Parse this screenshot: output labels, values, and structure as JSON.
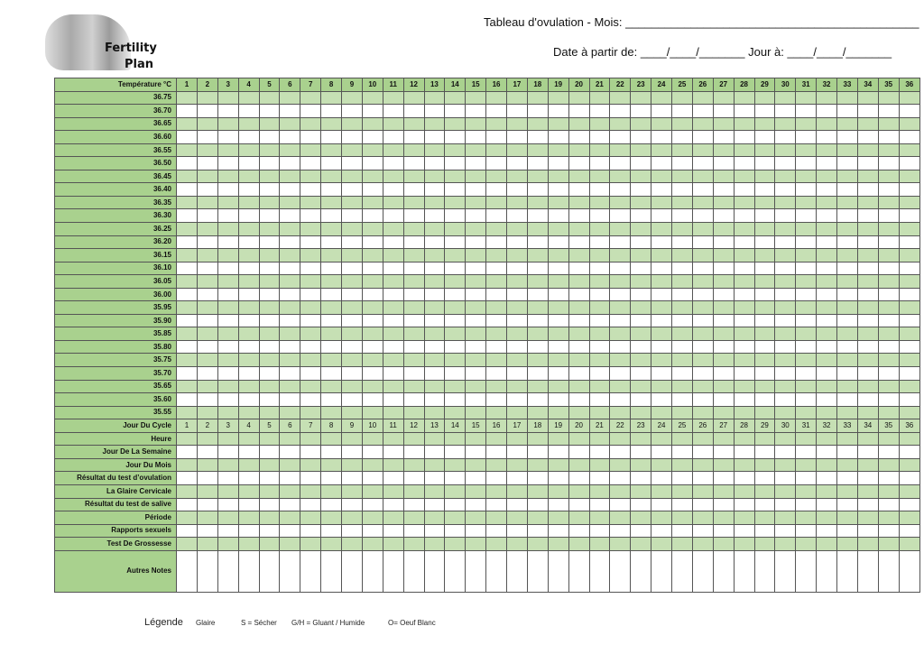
{
  "logo": {
    "line1": "Fertility",
    "line2": "Plan"
  },
  "header": {
    "title": "Tableau d'ovulation - Mois: _____________________________________________",
    "date": "Date à partir de: ____/____/_______ Jour à: ____/____/_______"
  },
  "table": {
    "corner_label": "Température  °C",
    "days": [
      1,
      2,
      3,
      4,
      5,
      6,
      7,
      8,
      9,
      10,
      11,
      12,
      13,
      14,
      15,
      16,
      17,
      18,
      19,
      20,
      21,
      22,
      23,
      24,
      25,
      26,
      27,
      28,
      29,
      30,
      31,
      32,
      33,
      34,
      35,
      36
    ],
    "temperatures": [
      "36.75",
      "36.70",
      "36.65",
      "36.60",
      "36.55",
      "36.50",
      "36.45",
      "36.40",
      "36.35",
      "36.30",
      "36.25",
      "36.20",
      "36.15",
      "36.10",
      "36.05",
      "36.00",
      "35.95",
      "35.90",
      "35.85",
      "35.80",
      "35.75",
      "35.70",
      "35.65",
      "35.60",
      "35.55"
    ],
    "cycle_label": "Jour Du Cycle",
    "rows": [
      "Heure",
      "Jour De La Semaine",
      "Jour Du Mois",
      "Résultat du test d’ovulation",
      "La Glaire Cervicale",
      "Résultat du test de salive",
      "Période",
      "Rapports sexuels",
      "Test De Grossesse"
    ],
    "notes_label": "Autres Notes"
  },
  "legend": {
    "title": "Légende",
    "items": [
      "Glaire",
      "S = Sécher",
      "G/H = Gluant / Humide",
      "O= Oeuf Blanc"
    ]
  },
  "colors": {
    "header_green": "#a9d18e",
    "row_green": "#c6e0b4"
  }
}
